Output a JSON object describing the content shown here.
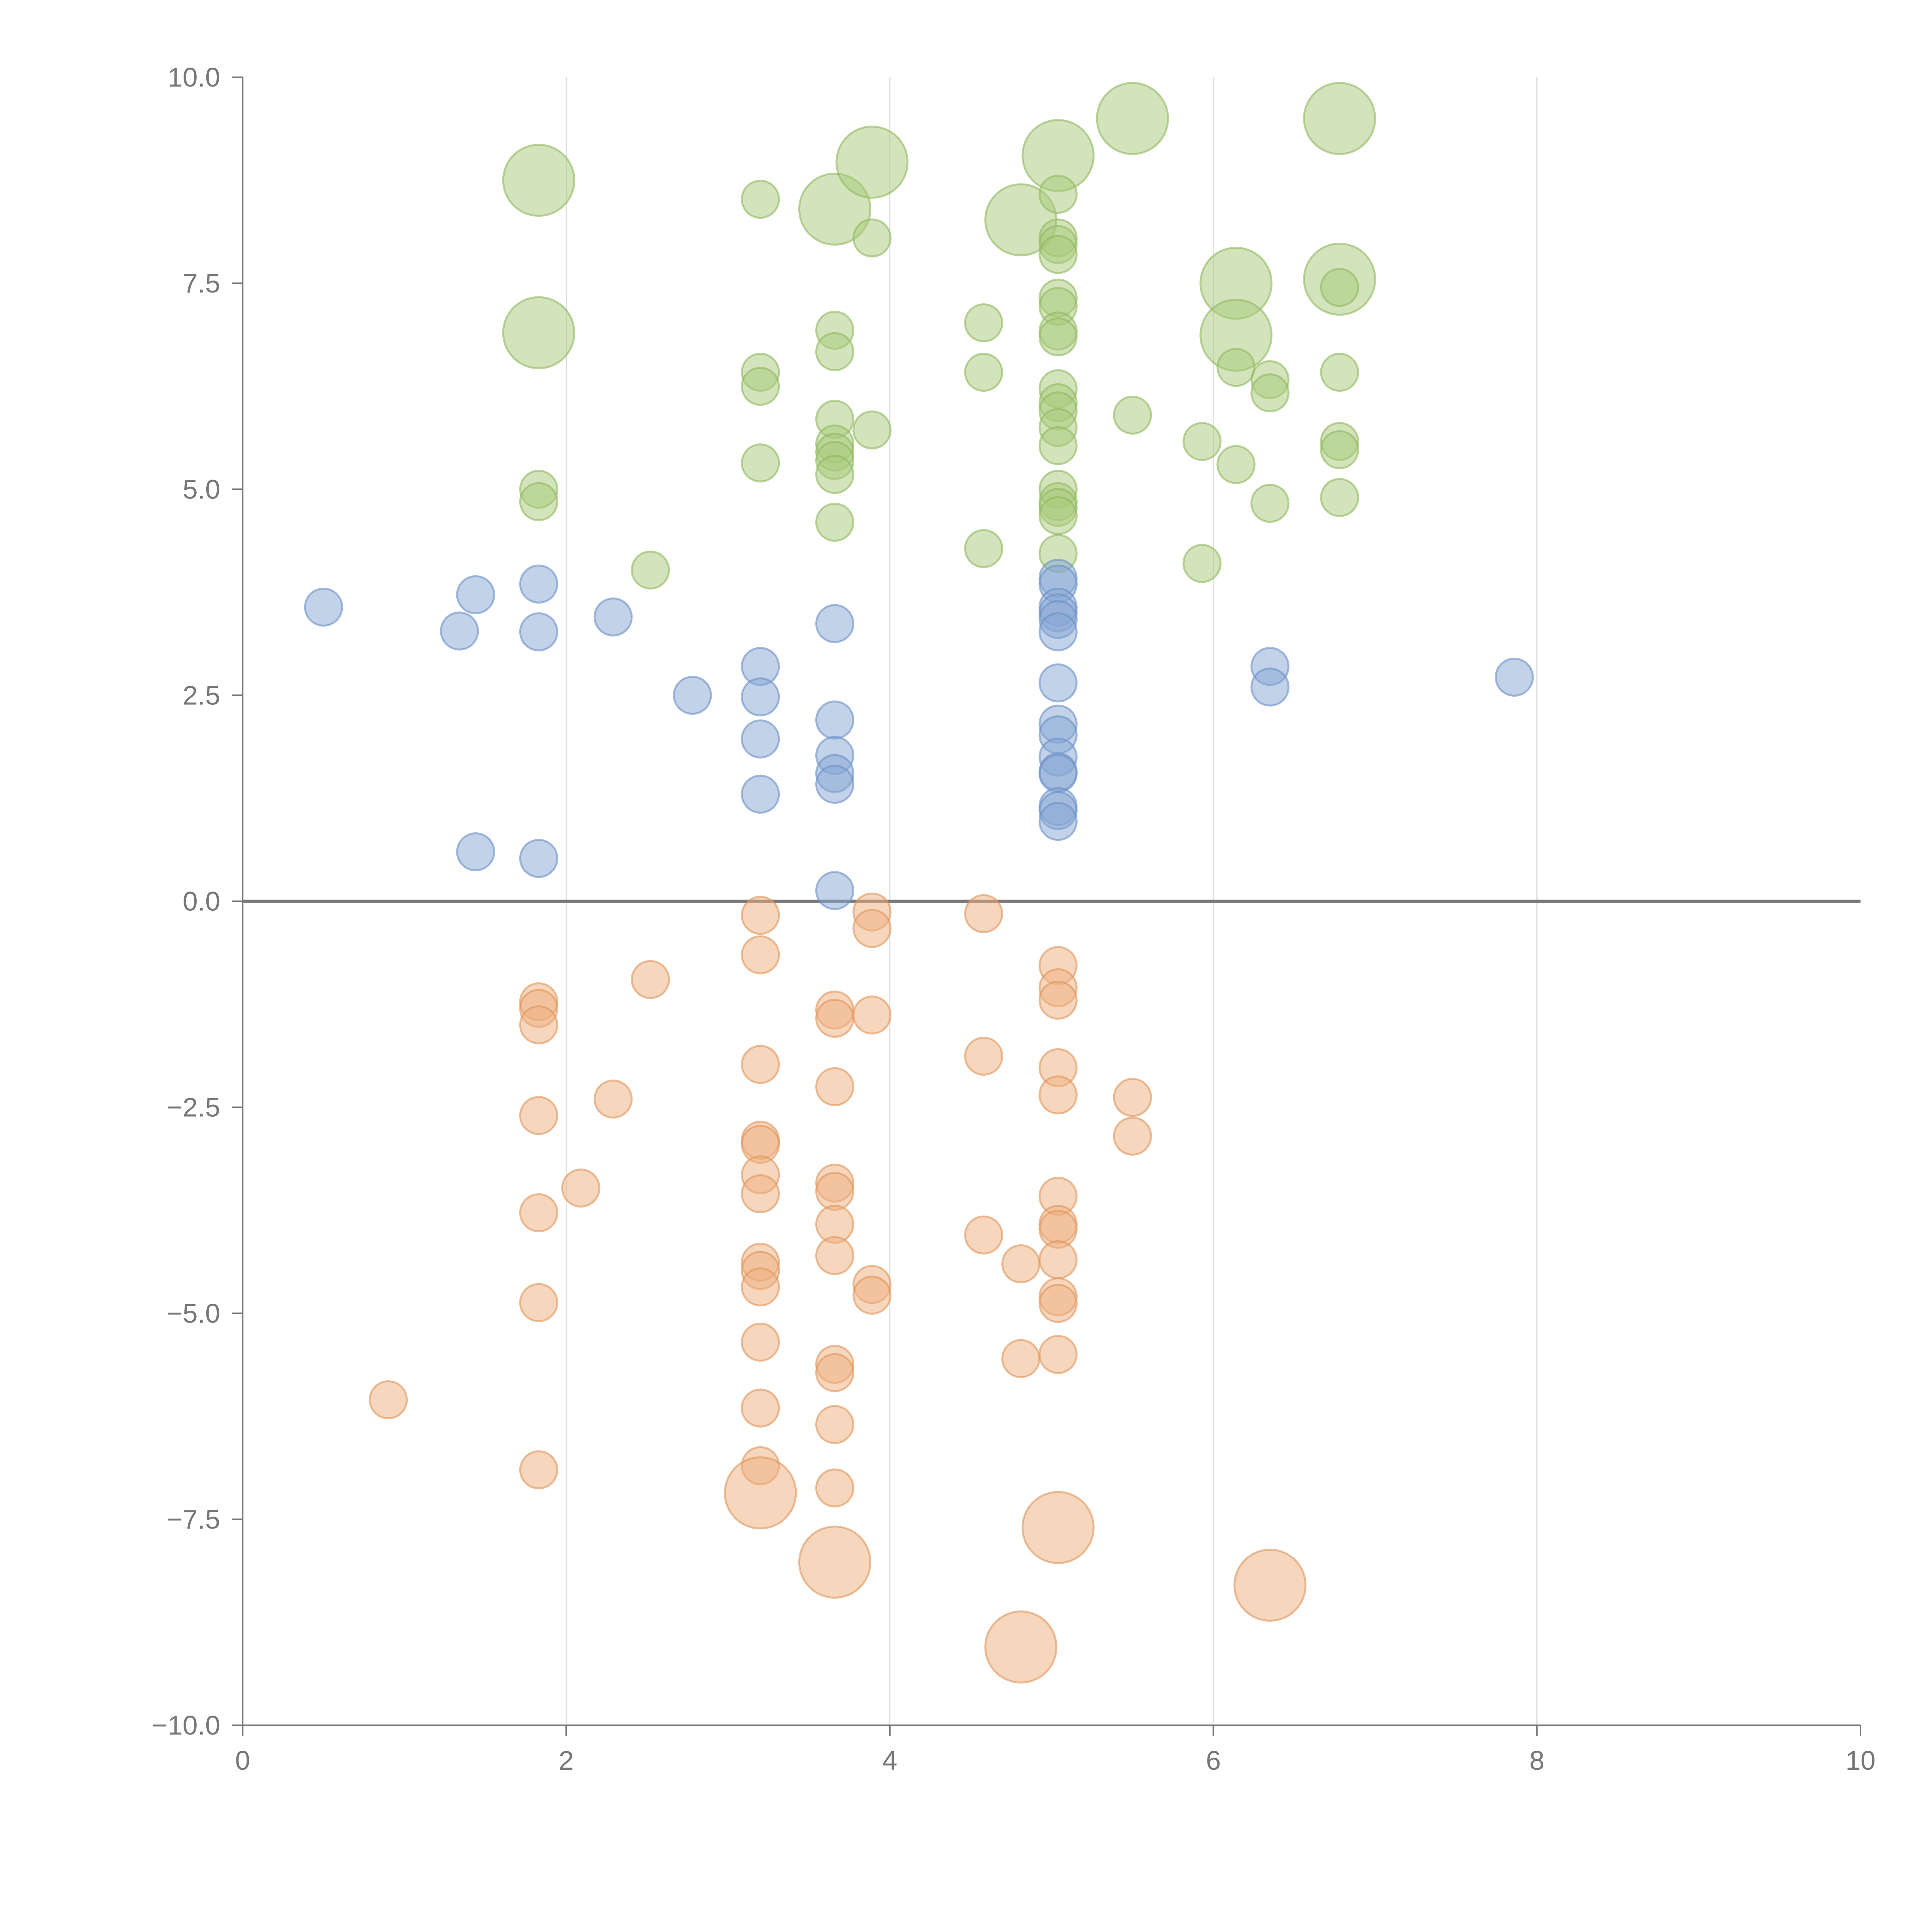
{
  "chart_data": {
    "type": "scatter",
    "title": "",
    "xlabel": "",
    "ylabel": "",
    "xlim": [
      0,
      10
    ],
    "ylim": [
      -10,
      10
    ],
    "x_ticks": [
      0,
      2,
      4,
      6,
      8,
      10
    ],
    "x_tick_labels": [
      "0",
      "2",
      "4",
      "6",
      "8",
      "10"
    ],
    "y_ticks": [
      10,
      7.5,
      5,
      2.5,
      0,
      -2.5,
      -5,
      -7.5,
      -10
    ],
    "y_tick_labels": [
      "10.0",
      "7.5",
      "5.0",
      "2.5",
      "0.0",
      "−2.5",
      "−5.0",
      "−7.5",
      "−10.0"
    ],
    "grid_x": true,
    "grid_y": false,
    "zero_line": true,
    "series": [
      {
        "name": "green",
        "color": "#a7c97a",
        "stroke": "#8fb85e",
        "points": [
          {
            "x": 1.83,
            "y": 8.75,
            "size": 2
          },
          {
            "x": 1.83,
            "y": 6.9,
            "size": 2
          },
          {
            "x": 1.83,
            "y": 5.0,
            "size": 1
          },
          {
            "x": 1.83,
            "y": 4.85,
            "size": 1
          },
          {
            "x": 2.52,
            "y": 4.02,
            "size": 1
          },
          {
            "x": 3.2,
            "y": 8.52,
            "size": 1
          },
          {
            "x": 3.2,
            "y": 6.42,
            "size": 1
          },
          {
            "x": 3.2,
            "y": 6.25,
            "size": 1
          },
          {
            "x": 3.2,
            "y": 5.32,
            "size": 1
          },
          {
            "x": 3.66,
            "y": 8.4,
            "size": 2
          },
          {
            "x": 3.66,
            "y": 6.93,
            "size": 1
          },
          {
            "x": 3.66,
            "y": 6.67,
            "size": 1
          },
          {
            "x": 3.66,
            "y": 5.85,
            "size": 1
          },
          {
            "x": 3.66,
            "y": 5.55,
            "size": 1
          },
          {
            "x": 3.66,
            "y": 5.45,
            "size": 1
          },
          {
            "x": 3.66,
            "y": 5.35,
            "size": 1
          },
          {
            "x": 3.66,
            "y": 5.18,
            "size": 1
          },
          {
            "x": 3.66,
            "y": 4.6,
            "size": 1
          },
          {
            "x": 3.89,
            "y": 8.97,
            "size": 2
          },
          {
            "x": 3.89,
            "y": 8.05,
            "size": 1
          },
          {
            "x": 3.89,
            "y": 5.72,
            "size": 1
          },
          {
            "x": 4.58,
            "y": 7.02,
            "size": 1
          },
          {
            "x": 4.58,
            "y": 6.42,
            "size": 1
          },
          {
            "x": 4.58,
            "y": 4.28,
            "size": 1
          },
          {
            "x": 4.81,
            "y": 8.27,
            "size": 2
          },
          {
            "x": 5.04,
            "y": 9.05,
            "size": 2
          },
          {
            "x": 5.04,
            "y": 8.58,
            "size": 1
          },
          {
            "x": 5.04,
            "y": 8.05,
            "size": 1
          },
          {
            "x": 5.04,
            "y": 7.97,
            "size": 1
          },
          {
            "x": 5.04,
            "y": 7.85,
            "size": 1
          },
          {
            "x": 5.04,
            "y": 7.32,
            "size": 1
          },
          {
            "x": 5.04,
            "y": 7.22,
            "size": 1
          },
          {
            "x": 5.04,
            "y": 6.92,
            "size": 1
          },
          {
            "x": 5.04,
            "y": 6.85,
            "size": 1
          },
          {
            "x": 5.04,
            "y": 6.22,
            "size": 1
          },
          {
            "x": 5.04,
            "y": 6.05,
            "size": 1
          },
          {
            "x": 5.04,
            "y": 5.95,
            "size": 1
          },
          {
            "x": 5.04,
            "y": 5.75,
            "size": 1
          },
          {
            "x": 5.04,
            "y": 5.53,
            "size": 1
          },
          {
            "x": 5.04,
            "y": 5.0,
            "size": 1
          },
          {
            "x": 5.04,
            "y": 4.85,
            "size": 1
          },
          {
            "x": 5.04,
            "y": 4.78,
            "size": 1
          },
          {
            "x": 5.04,
            "y": 4.68,
            "size": 1
          },
          {
            "x": 5.04,
            "y": 4.22,
            "size": 1
          },
          {
            "x": 5.5,
            "y": 9.5,
            "size": 2
          },
          {
            "x": 5.5,
            "y": 5.9,
            "size": 1
          },
          {
            "x": 5.93,
            "y": 5.58,
            "size": 1
          },
          {
            "x": 5.93,
            "y": 4.1,
            "size": 1
          },
          {
            "x": 6.14,
            "y": 7.5,
            "size": 2
          },
          {
            "x": 6.14,
            "y": 6.87,
            "size": 2
          },
          {
            "x": 6.14,
            "y": 6.48,
            "size": 1
          },
          {
            "x": 6.14,
            "y": 5.3,
            "size": 1
          },
          {
            "x": 6.35,
            "y": 6.33,
            "size": 1
          },
          {
            "x": 6.35,
            "y": 6.17,
            "size": 1
          },
          {
            "x": 6.35,
            "y": 4.83,
            "size": 1
          },
          {
            "x": 6.78,
            "y": 9.5,
            "size": 2
          },
          {
            "x": 6.78,
            "y": 7.55,
            "size": 2
          },
          {
            "x": 6.78,
            "y": 7.45,
            "size": 1
          },
          {
            "x": 6.78,
            "y": 6.42,
            "size": 1
          },
          {
            "x": 6.78,
            "y": 5.58,
            "size": 1
          },
          {
            "x": 6.78,
            "y": 5.48,
            "size": 1
          },
          {
            "x": 6.78,
            "y": 4.9,
            "size": 1
          }
        ]
      },
      {
        "name": "blue",
        "color": "#86a6d4",
        "stroke": "#6a8fc7",
        "points": [
          {
            "x": 0.5,
            "y": 3.57,
            "size": 1
          },
          {
            "x": 1.34,
            "y": 3.28,
            "size": 1
          },
          {
            "x": 1.44,
            "y": 3.72,
            "size": 1
          },
          {
            "x": 1.44,
            "y": 0.6,
            "size": 1
          },
          {
            "x": 1.83,
            "y": 3.85,
            "size": 1
          },
          {
            "x": 1.83,
            "y": 3.27,
            "size": 1
          },
          {
            "x": 1.83,
            "y": 0.52,
            "size": 1
          },
          {
            "x": 2.29,
            "y": 3.45,
            "size": 1
          },
          {
            "x": 2.78,
            "y": 2.5,
            "size": 1
          },
          {
            "x": 3.2,
            "y": 2.85,
            "size": 1
          },
          {
            "x": 3.2,
            "y": 2.48,
            "size": 1
          },
          {
            "x": 3.2,
            "y": 1.97,
            "size": 1
          },
          {
            "x": 3.2,
            "y": 1.3,
            "size": 1
          },
          {
            "x": 3.66,
            "y": 3.37,
            "size": 1
          },
          {
            "x": 3.66,
            "y": 2.2,
            "size": 1
          },
          {
            "x": 3.66,
            "y": 1.77,
            "size": 1
          },
          {
            "x": 3.66,
            "y": 1.55,
            "size": 1
          },
          {
            "x": 3.66,
            "y": 1.42,
            "size": 1
          },
          {
            "x": 3.66,
            "y": 0.13,
            "size": 1
          },
          {
            "x": 5.04,
            "y": 3.92,
            "size": 1
          },
          {
            "x": 5.04,
            "y": 3.85,
            "size": 1
          },
          {
            "x": 5.04,
            "y": 3.57,
            "size": 1
          },
          {
            "x": 5.04,
            "y": 3.5,
            "size": 1
          },
          {
            "x": 5.04,
            "y": 3.42,
            "size": 1
          },
          {
            "x": 5.04,
            "y": 3.27,
            "size": 1
          },
          {
            "x": 5.04,
            "y": 2.65,
            "size": 1
          },
          {
            "x": 5.04,
            "y": 2.15,
            "size": 1
          },
          {
            "x": 5.04,
            "y": 2.02,
            "size": 1
          },
          {
            "x": 5.04,
            "y": 1.75,
            "size": 1
          },
          {
            "x": 5.04,
            "y": 1.57,
            "size": 1
          },
          {
            "x": 5.04,
            "y": 1.55,
            "size": 1
          },
          {
            "x": 5.04,
            "y": 1.15,
            "size": 1
          },
          {
            "x": 5.04,
            "y": 1.1,
            "size": 1
          },
          {
            "x": 5.04,
            "y": 0.97,
            "size": 1
          },
          {
            "x": 6.35,
            "y": 2.85,
            "size": 1
          },
          {
            "x": 6.35,
            "y": 2.6,
            "size": 1
          },
          {
            "x": 7.86,
            "y": 2.72,
            "size": 1
          }
        ]
      },
      {
        "name": "orange",
        "color": "#eeaf7e",
        "stroke": "#e0955a",
        "points": [
          {
            "x": 0.9,
            "y": -6.05,
            "size": 1
          },
          {
            "x": 1.83,
            "y": -1.22,
            "size": 1
          },
          {
            "x": 1.83,
            "y": -1.3,
            "size": 1
          },
          {
            "x": 1.83,
            "y": -1.5,
            "size": 1
          },
          {
            "x": 1.83,
            "y": -2.6,
            "size": 1
          },
          {
            "x": 1.83,
            "y": -3.78,
            "size": 1
          },
          {
            "x": 1.83,
            "y": -4.87,
            "size": 1
          },
          {
            "x": 1.83,
            "y": -6.9,
            "size": 1
          },
          {
            "x": 2.09,
            "y": -3.48,
            "size": 1
          },
          {
            "x": 2.29,
            "y": -2.4,
            "size": 1
          },
          {
            "x": 2.52,
            "y": -0.95,
            "size": 1
          },
          {
            "x": 3.2,
            "y": -0.17,
            "size": 1
          },
          {
            "x": 3.2,
            "y": -0.65,
            "size": 1
          },
          {
            "x": 3.2,
            "y": -1.98,
            "size": 1
          },
          {
            "x": 3.2,
            "y": -2.9,
            "size": 1
          },
          {
            "x": 3.2,
            "y": -2.95,
            "size": 1
          },
          {
            "x": 3.2,
            "y": -3.32,
            "size": 1
          },
          {
            "x": 3.2,
            "y": -3.55,
            "size": 1
          },
          {
            "x": 3.2,
            "y": -4.38,
            "size": 1
          },
          {
            "x": 3.2,
            "y": -4.48,
            "size": 1
          },
          {
            "x": 3.2,
            "y": -4.68,
            "size": 1
          },
          {
            "x": 3.2,
            "y": -5.35,
            "size": 1
          },
          {
            "x": 3.2,
            "y": -6.15,
            "size": 1
          },
          {
            "x": 3.2,
            "y": -6.85,
            "size": 1
          },
          {
            "x": 3.2,
            "y": -7.18,
            "size": 2
          },
          {
            "x": 3.66,
            "y": -1.32,
            "size": 1
          },
          {
            "x": 3.66,
            "y": -1.42,
            "size": 1
          },
          {
            "x": 3.66,
            "y": -2.25,
            "size": 1
          },
          {
            "x": 3.66,
            "y": -3.42,
            "size": 1
          },
          {
            "x": 3.66,
            "y": -3.52,
            "size": 1
          },
          {
            "x": 3.66,
            "y": -3.92,
            "size": 1
          },
          {
            "x": 3.66,
            "y": -4.3,
            "size": 1
          },
          {
            "x": 3.66,
            "y": -5.62,
            "size": 1
          },
          {
            "x": 3.66,
            "y": -5.72,
            "size": 1
          },
          {
            "x": 3.66,
            "y": -6.35,
            "size": 1
          },
          {
            "x": 3.66,
            "y": -7.12,
            "size": 1
          },
          {
            "x": 3.66,
            "y": -8.02,
            "size": 2
          },
          {
            "x": 3.89,
            "y": -0.13,
            "size": 1
          },
          {
            "x": 3.89,
            "y": -0.33,
            "size": 1
          },
          {
            "x": 3.89,
            "y": -1.38,
            "size": 1
          },
          {
            "x": 3.89,
            "y": -4.65,
            "size": 1
          },
          {
            "x": 3.89,
            "y": -4.78,
            "size": 1
          },
          {
            "x": 4.58,
            "y": -0.15,
            "size": 1
          },
          {
            "x": 4.58,
            "y": -1.88,
            "size": 1
          },
          {
            "x": 4.58,
            "y": -4.05,
            "size": 1
          },
          {
            "x": 4.81,
            "y": -4.4,
            "size": 1
          },
          {
            "x": 4.81,
            "y": -5.55,
            "size": 1
          },
          {
            "x": 4.81,
            "y": -9.05,
            "size": 2
          },
          {
            "x": 5.04,
            "y": -0.78,
            "size": 1
          },
          {
            "x": 5.04,
            "y": -1.05,
            "size": 1
          },
          {
            "x": 5.04,
            "y": -1.2,
            "size": 1
          },
          {
            "x": 5.04,
            "y": -2.02,
            "size": 1
          },
          {
            "x": 5.04,
            "y": -2.35,
            "size": 1
          },
          {
            "x": 5.04,
            "y": -3.58,
            "size": 1
          },
          {
            "x": 5.04,
            "y": -3.92,
            "size": 1
          },
          {
            "x": 5.04,
            "y": -3.98,
            "size": 1
          },
          {
            "x": 5.04,
            "y": -4.35,
            "size": 1
          },
          {
            "x": 5.04,
            "y": -4.8,
            "size": 1
          },
          {
            "x": 5.04,
            "y": -4.88,
            "size": 1
          },
          {
            "x": 5.04,
            "y": -5.5,
            "size": 1
          },
          {
            "x": 5.04,
            "y": -7.6,
            "size": 2
          },
          {
            "x": 5.5,
            "y": -2.38,
            "size": 1
          },
          {
            "x": 5.5,
            "y": -2.85,
            "size": 1
          },
          {
            "x": 6.35,
            "y": -8.3,
            "size": 2
          }
        ]
      }
    ]
  }
}
